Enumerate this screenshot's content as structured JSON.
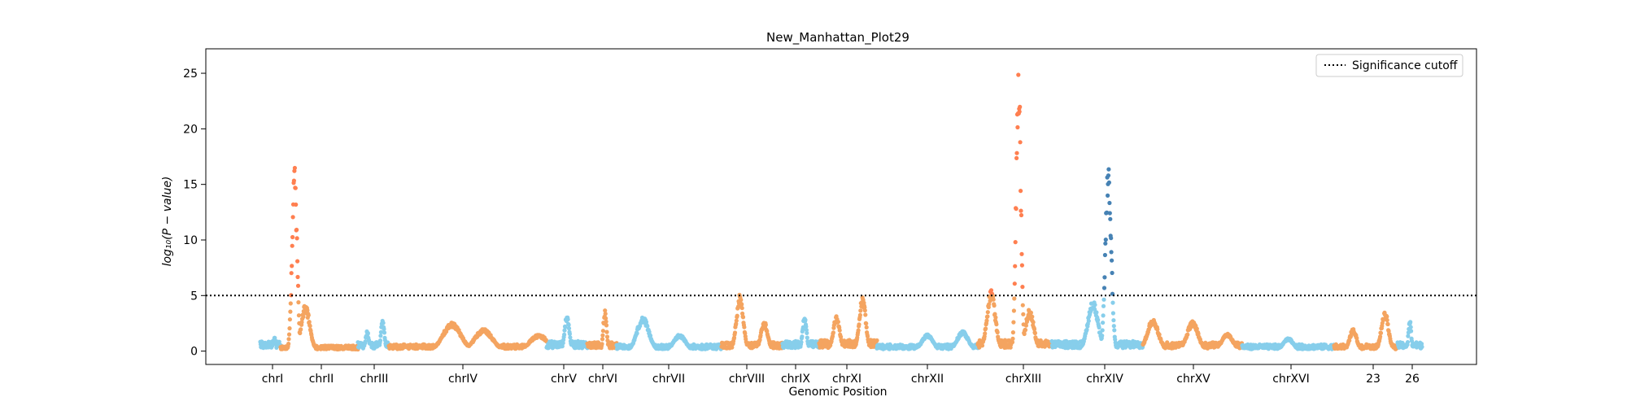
{
  "chart_data": {
    "type": "scatter",
    "title": "New_Manhattan_Plot29",
    "xlabel": "Genomic Position",
    "ylabel": "log₁₀(P − value)",
    "ylim": [
      -1.2,
      27.2
    ],
    "yticks": [
      0,
      5,
      10,
      15,
      20,
      25
    ],
    "grid": false,
    "legend_position": "top-right",
    "x_categories": [
      "chrI",
      "chrII",
      "chrIII",
      "chrIV",
      "chrV",
      "chrVI",
      "chrVII",
      "chrVIII",
      "chrIX",
      "chrXI",
      "chrXII",
      "chrXIII",
      "chrXIV",
      "chrXV",
      "chrXVI",
      "23",
      "26"
    ],
    "colors": {
      "light_blue": "#87ceeb",
      "sandy_orange": "#f4a460",
      "highlight_orange": "#ff7f50",
      "highlight_blue": "#4682b4"
    },
    "significance_line": {
      "value": 5,
      "label": "Significance cutoff",
      "style": "dotted",
      "color": "#000000"
    },
    "segments": [
      {
        "label": "chrI",
        "color": "#87ceeb",
        "baseline": 0.9,
        "peaks": [
          [
            0.7,
            1.3
          ]
        ]
      },
      {
        "label": "chrII",
        "color": "#f4a460",
        "baseline": 0.5,
        "peaks": [
          [
            0.18,
            16.7
          ],
          [
            0.32,
            4.2
          ]
        ],
        "highlight_color": "#ff7f50"
      },
      {
        "label": "chrIII",
        "color": "#87ceeb",
        "baseline": 0.8,
        "peaks": [
          [
            0.3,
            1.8
          ],
          [
            0.8,
            2.9
          ]
        ]
      },
      {
        "label": "chrIV",
        "color": "#f4a460",
        "baseline": 0.6,
        "peaks": [
          [
            0.4,
            2.6
          ],
          [
            0.6,
            2.0
          ],
          [
            0.95,
            1.5
          ]
        ]
      },
      {
        "label": "chrV",
        "color": "#87ceeb",
        "baseline": 0.9,
        "peaks": [
          [
            0.5,
            3.4
          ]
        ]
      },
      {
        "label": "chrVI",
        "color": "#f4a460",
        "baseline": 0.8,
        "peaks": [
          [
            0.6,
            3.7
          ]
        ]
      },
      {
        "label": "chrVII",
        "color": "#87ceeb",
        "baseline": 0.6,
        "peaks": [
          [
            0.25,
            3.1
          ],
          [
            0.6,
            1.5
          ]
        ]
      },
      {
        "label": "chrVIII",
        "color": "#f4a460",
        "baseline": 0.8,
        "peaks": [
          [
            0.3,
            5.2
          ],
          [
            0.7,
            2.7
          ]
        ]
      },
      {
        "label": "chrIX",
        "color": "#87ceeb",
        "baseline": 0.9,
        "peaks": [
          [
            0.6,
            3.1
          ]
        ]
      },
      {
        "label": "chrXI",
        "color": "#f4a460",
        "baseline": 1.0,
        "peaks": [
          [
            0.3,
            3.2
          ],
          [
            0.75,
            5.0
          ]
        ]
      },
      {
        "label": "chrXII",
        "color": "#87ceeb",
        "baseline": 0.6,
        "peaks": [
          [
            0.5,
            1.5
          ],
          [
            0.85,
            1.8
          ]
        ]
      },
      {
        "label": "chrXIII",
        "color": "#f4a460",
        "baseline": 1.0,
        "peaks": [
          [
            0.18,
            5.5
          ],
          [
            0.55,
            25.8
          ],
          [
            0.7,
            3.8
          ]
        ],
        "highlight_color": "#ff7f50"
      },
      {
        "label": "chrXIV",
        "color": "#87ceeb",
        "baseline": 0.9,
        "peaks": [
          [
            0.45,
            4.6
          ],
          [
            0.62,
            16.8
          ]
        ],
        "highlight_color": "#4682b4"
      },
      {
        "label": "chrXV",
        "color": "#f4a460",
        "baseline": 0.8,
        "peaks": [
          [
            0.1,
            2.9
          ],
          [
            0.5,
            2.7
          ],
          [
            0.85,
            1.6
          ]
        ]
      },
      {
        "label": "chrXVI",
        "color": "#87ceeb",
        "baseline": 0.6,
        "peaks": [
          [
            0.5,
            1.2
          ]
        ]
      },
      {
        "label": "23",
        "color": "#f4a460",
        "baseline": 0.6,
        "peaks": [
          [
            0.3,
            2.0
          ],
          [
            0.8,
            3.6
          ]
        ]
      },
      {
        "label": "26",
        "color": "#87ceeb",
        "baseline": 0.8,
        "peaks": [
          [
            0.5,
            2.9
          ]
        ]
      }
    ]
  }
}
